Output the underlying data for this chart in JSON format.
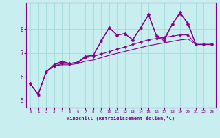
{
  "xlabel": "Windchill (Refroidissement éolien,°C)",
  "background_color": "#c8eef0",
  "grid_color": "#a8dde0",
  "line_color": "#880088",
  "xlim": [
    -0.5,
    23.5
  ],
  "ylim": [
    4.7,
    9.1
  ],
  "yticks": [
    5,
    6,
    7,
    8
  ],
  "xticks": [
    0,
    1,
    2,
    3,
    4,
    5,
    6,
    7,
    8,
    9,
    10,
    11,
    12,
    13,
    14,
    15,
    16,
    17,
    18,
    19,
    20,
    21,
    22,
    23
  ],
  "series": [
    {
      "x": [
        0,
        1,
        2,
        3,
        4,
        5,
        6,
        7,
        8,
        9,
        10,
        11,
        12,
        13,
        14,
        15,
        16,
        17,
        18,
        19,
        20,
        21,
        22,
        23
      ],
      "y": [
        5.7,
        5.25,
        6.2,
        6.5,
        6.6,
        6.55,
        6.6,
        6.85,
        6.9,
        7.5,
        8.05,
        7.75,
        7.8,
        7.55,
        8.05,
        8.6,
        7.7,
        7.5,
        8.2,
        8.7,
        8.2,
        7.35,
        7.35,
        7.35
      ],
      "marker": "D",
      "markersize": 2.5,
      "linewidth": 0.9,
      "linestyle": "-"
    },
    {
      "x": [
        0,
        1,
        2,
        3,
        4,
        5,
        6,
        7,
        8,
        9,
        10,
        11,
        12,
        13,
        14,
        15,
        16,
        17,
        18,
        19,
        20,
        21,
        22,
        23
      ],
      "y": [
        5.7,
        5.25,
        6.2,
        6.5,
        6.65,
        6.55,
        6.6,
        6.85,
        6.9,
        7.5,
        8.05,
        7.75,
        7.8,
        7.55,
        8.05,
        8.6,
        7.7,
        7.6,
        8.2,
        8.65,
        8.25,
        7.35,
        7.35,
        7.35
      ],
      "marker": "^",
      "markersize": 2.5,
      "linewidth": 0.9,
      "linestyle": "-"
    },
    {
      "x": [
        0,
        1,
        2,
        3,
        4,
        5,
        6,
        7,
        8,
        9,
        10,
        11,
        12,
        13,
        14,
        15,
        16,
        17,
        18,
        19,
        20,
        21,
        22,
        23
      ],
      "y": [
        5.7,
        5.25,
        6.2,
        6.45,
        6.55,
        6.55,
        6.6,
        6.8,
        6.85,
        6.95,
        7.05,
        7.15,
        7.25,
        7.35,
        7.45,
        7.55,
        7.6,
        7.65,
        7.7,
        7.75,
        7.75,
        7.35,
        7.35,
        7.35
      ],
      "marker": "D",
      "markersize": 2.0,
      "linewidth": 0.8,
      "linestyle": "-"
    },
    {
      "x": [
        2,
        3,
        4,
        5,
        6,
        7,
        8,
        9,
        10,
        11,
        12,
        13,
        14,
        15,
        16,
        17,
        18,
        19,
        20,
        21,
        22,
        23
      ],
      "y": [
        6.2,
        6.45,
        6.5,
        6.5,
        6.55,
        6.65,
        6.7,
        6.8,
        6.9,
        6.98,
        7.06,
        7.14,
        7.22,
        7.3,
        7.36,
        7.42,
        7.48,
        7.54,
        7.58,
        7.35,
        7.35,
        7.35
      ],
      "marker": null,
      "markersize": 0,
      "linewidth": 0.8,
      "linestyle": "-"
    }
  ]
}
